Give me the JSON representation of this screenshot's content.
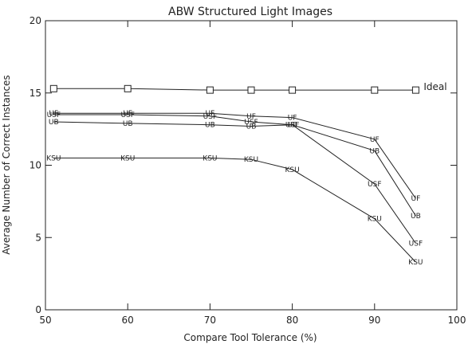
{
  "chart_data": {
    "type": "line",
    "title": "ABW Structured Light Images",
    "xlabel": "Compare Tool Tolerance (%)",
    "ylabel": "Average Number of Correct Instances",
    "xlim": [
      50,
      100
    ],
    "ylim": [
      0,
      20
    ],
    "x_ticks": [
      50,
      60,
      70,
      80,
      90,
      100
    ],
    "y_ticks": [
      0,
      5,
      10,
      15,
      20
    ],
    "grid": false,
    "x": [
      51,
      60,
      70,
      75,
      80,
      90,
      95
    ],
    "series": [
      {
        "name": "Ideal",
        "marker": "square",
        "values": [
          15.3,
          15.3,
          15.2,
          15.2,
          15.2,
          15.2,
          15.2
        ]
      },
      {
        "name": "UF",
        "marker": "UF",
        "values": [
          13.6,
          13.6,
          13.6,
          13.4,
          13.3,
          11.8,
          7.7
        ]
      },
      {
        "name": "USF",
        "marker": "USF",
        "values": [
          13.5,
          13.5,
          13.4,
          13.0,
          12.8,
          8.7,
          4.6
        ]
      },
      {
        "name": "UB",
        "marker": "UB",
        "values": [
          13.0,
          12.9,
          12.8,
          12.7,
          12.8,
          11.0,
          6.5
        ]
      },
      {
        "name": "KSU",
        "marker": "KSU",
        "values": [
          10.5,
          10.5,
          10.5,
          10.4,
          9.7,
          6.3,
          3.3
        ]
      }
    ],
    "ideal_label": "Ideal"
  }
}
